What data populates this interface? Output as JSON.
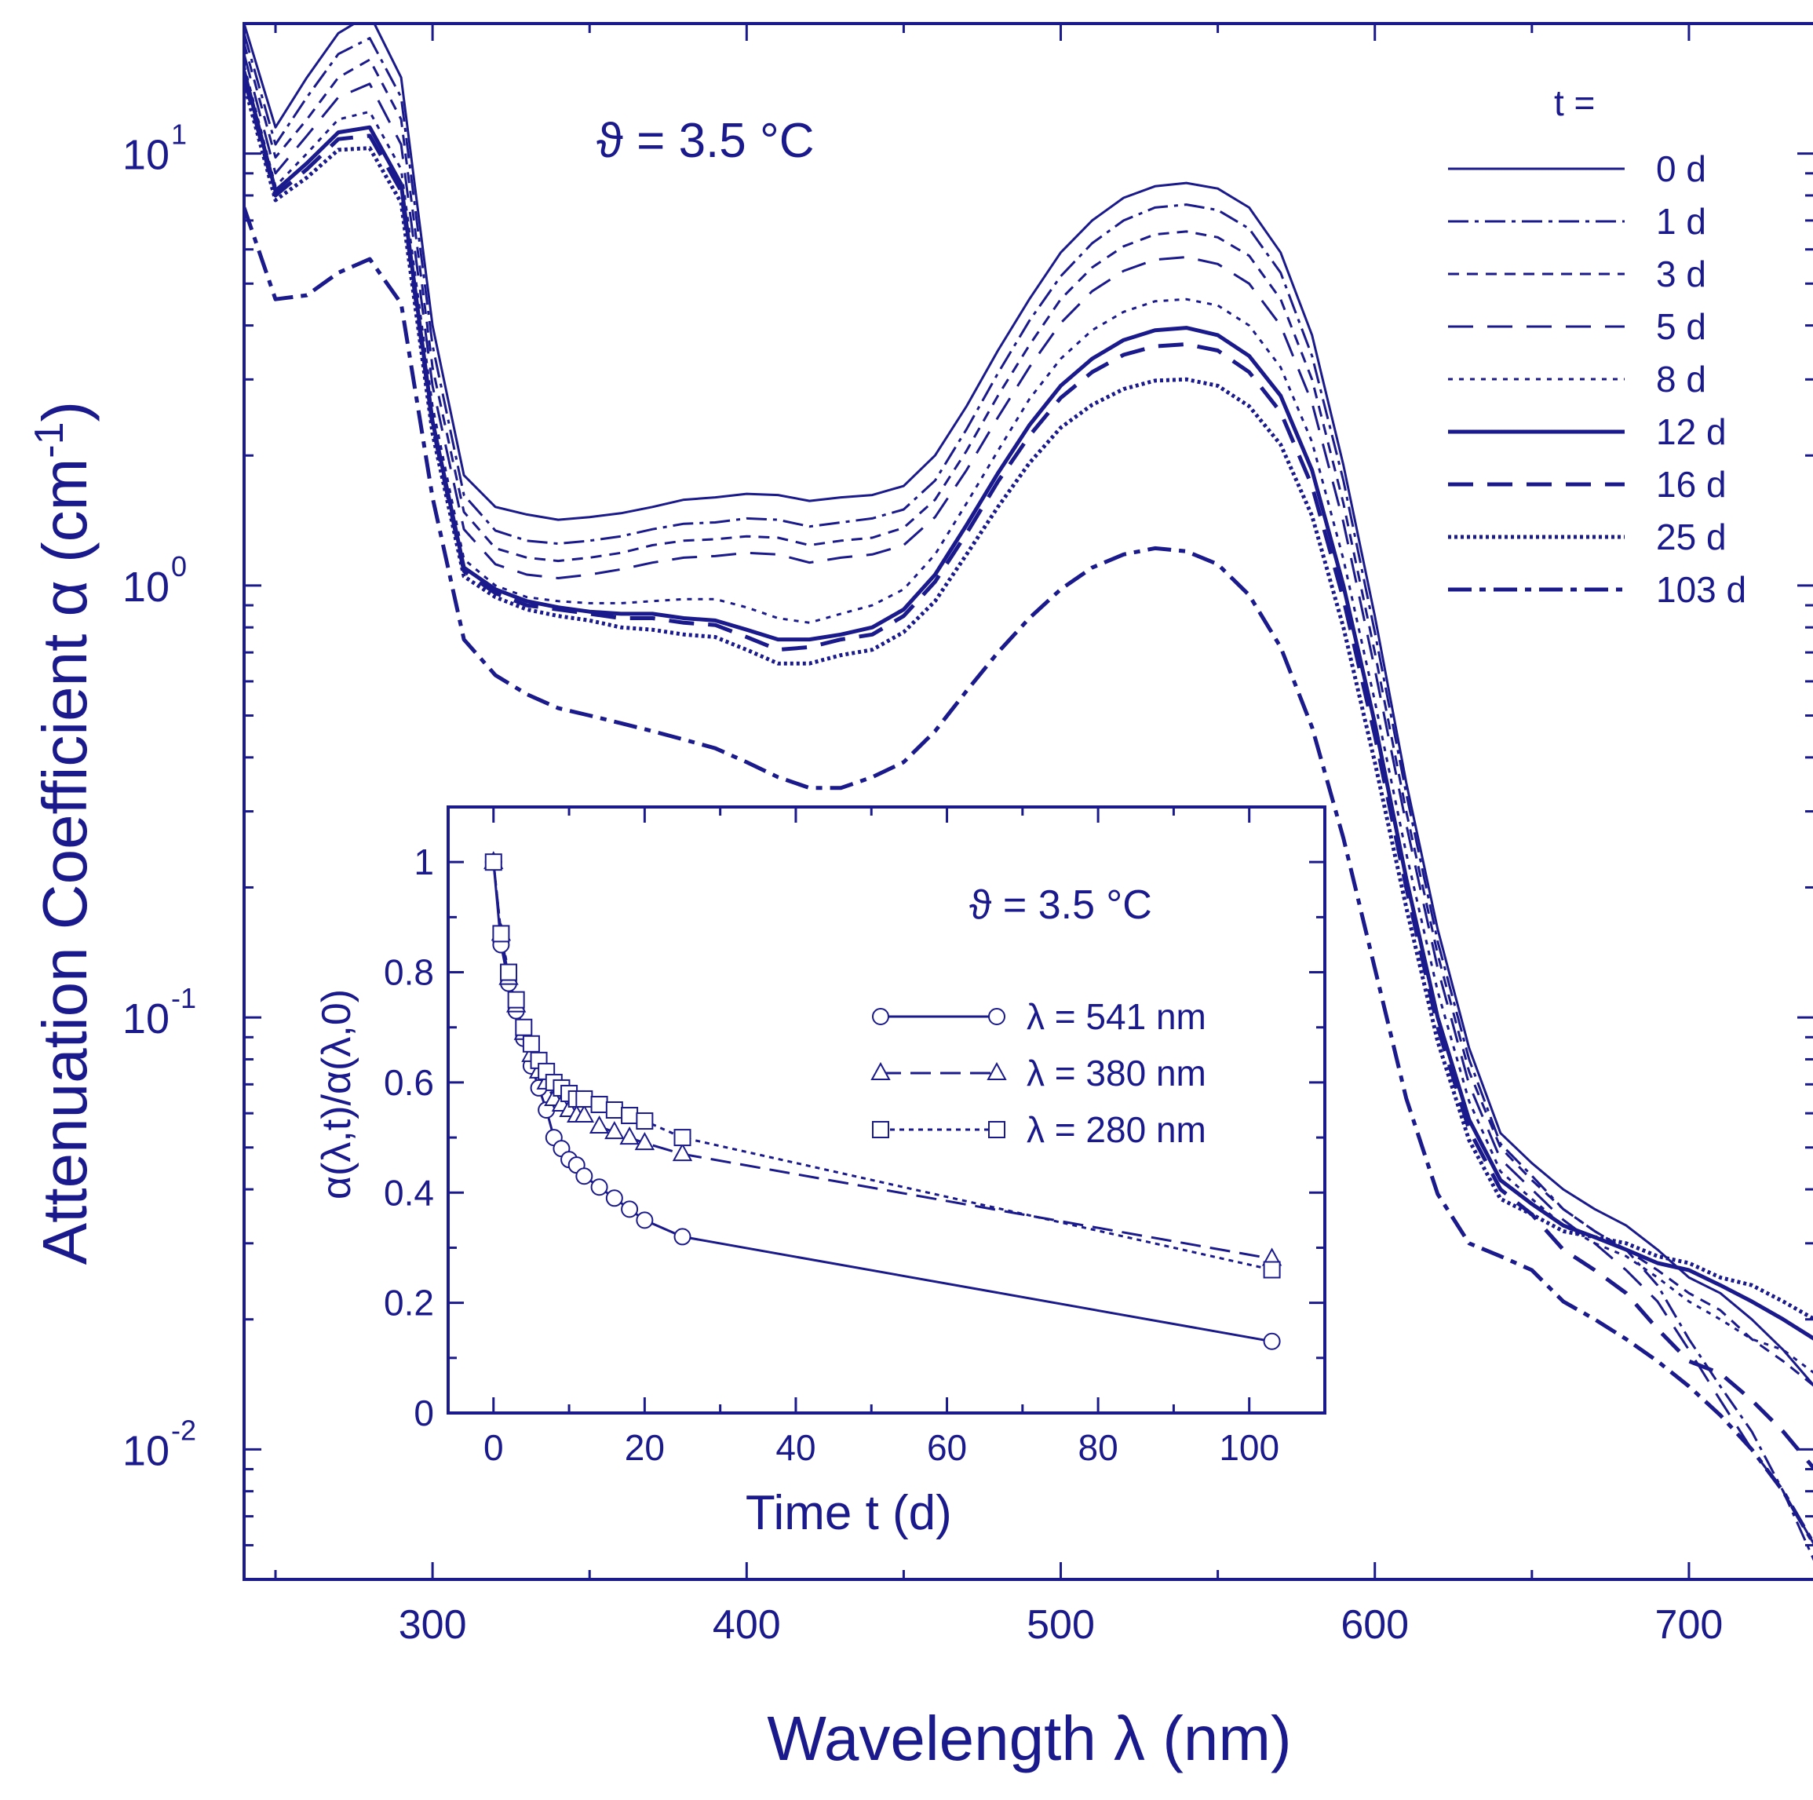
{
  "colors": {
    "ink": "#1a1a8c",
    "background": "#ffffff"
  },
  "chart_data": [
    {
      "type": "line",
      "title": "",
      "annotation": "ϑ = 3.5 °C",
      "xlabel": "Wavelength  λ  (nm)",
      "ylabel_prefix": "Attenuation Coefficient  α  (cm",
      "ylabel_exp": "-1",
      "ylabel_suffix": ")",
      "xscale": "linear",
      "yscale": "log",
      "xlim": [
        240,
        740
      ],
      "ylim": [
        0.005,
        20
      ],
      "xticks": [
        300,
        400,
        500,
        600,
        700
      ],
      "xtick_labels": [
        "300",
        "400",
        "500",
        "600",
        "700"
      ],
      "yticks": [
        {
          "value": 10,
          "base": "10",
          "exp": "1"
        },
        {
          "value": 1,
          "base": "10",
          "exp": "0"
        },
        {
          "value": 0.1,
          "base": "10",
          "exp": "-1"
        },
        {
          "value": 0.01,
          "base": "10",
          "exp": "-2"
        }
      ],
      "legend_title": "t =",
      "legend_position": "top-right",
      "wavelength": [
        240,
        250,
        260,
        270,
        280,
        290,
        300,
        310,
        320,
        330,
        340,
        350,
        360,
        370,
        380,
        390,
        400,
        410,
        420,
        430,
        440,
        450,
        460,
        470,
        480,
        490,
        500,
        510,
        520,
        530,
        540,
        550,
        560,
        570,
        580,
        590,
        600,
        610,
        620,
        630,
        640,
        650,
        660,
        670,
        680,
        690,
        700,
        710,
        720,
        730,
        740
      ],
      "series": [
        {
          "name": "0 d",
          "style": "solid",
          "width": 3,
          "values": [
            20.0,
            11.5,
            15.0,
            19.0,
            21.0,
            15.0,
            4.0,
            1.8,
            1.52,
            1.46,
            1.42,
            1.44,
            1.47,
            1.52,
            1.58,
            1.6,
            1.63,
            1.62,
            1.57,
            1.6,
            1.62,
            1.7,
            2.0,
            2.6,
            3.5,
            4.6,
            5.9,
            7.0,
            7.9,
            8.4,
            8.55,
            8.3,
            7.5,
            5.9,
            3.8,
            1.9,
            0.85,
            0.35,
            0.16,
            0.085,
            0.054,
            0.046,
            0.04,
            0.036,
            0.033,
            0.029,
            0.025,
            0.023,
            0.02,
            0.017,
            0.014
          ]
        },
        {
          "name": "1 d",
          "style": "dashdot",
          "width": 3,
          "values": [
            19.0,
            10.5,
            13.5,
            17.0,
            18.5,
            13.5,
            3.6,
            1.62,
            1.34,
            1.27,
            1.25,
            1.27,
            1.3,
            1.35,
            1.39,
            1.4,
            1.43,
            1.42,
            1.37,
            1.4,
            1.43,
            1.5,
            1.75,
            2.3,
            3.1,
            4.1,
            5.2,
            6.2,
            7.0,
            7.5,
            7.62,
            7.4,
            6.7,
            5.3,
            3.4,
            1.75,
            0.78,
            0.33,
            0.15,
            0.08,
            0.051,
            0.043,
            0.036,
            0.032,
            0.029,
            0.024,
            0.018,
            0.014,
            0.011,
            0.008,
            0.0055
          ]
        },
        {
          "name": "3 d",
          "style": "dash_short",
          "width": 3,
          "values": [
            18.0,
            9.8,
            12.0,
            15.0,
            16.5,
            12.0,
            3.2,
            1.48,
            1.22,
            1.16,
            1.14,
            1.16,
            1.19,
            1.24,
            1.27,
            1.28,
            1.3,
            1.29,
            1.24,
            1.27,
            1.29,
            1.36,
            1.58,
            2.05,
            2.75,
            3.6,
            4.6,
            5.45,
            6.1,
            6.5,
            6.6,
            6.4,
            5.8,
            4.6,
            3.0,
            1.55,
            0.7,
            0.3,
            0.14,
            0.075,
            0.05,
            0.042,
            0.036,
            0.032,
            0.029,
            0.026,
            0.023,
            0.021,
            0.018,
            0.016,
            0.014
          ]
        },
        {
          "name": "5 d",
          "style": "dash_long",
          "width": 3,
          "values": [
            17.0,
            9.0,
            11.0,
            13.5,
            14.5,
            10.5,
            2.9,
            1.35,
            1.12,
            1.06,
            1.04,
            1.06,
            1.09,
            1.13,
            1.16,
            1.17,
            1.19,
            1.18,
            1.13,
            1.16,
            1.18,
            1.24,
            1.44,
            1.85,
            2.45,
            3.2,
            4.05,
            4.8,
            5.35,
            5.68,
            5.76,
            5.55,
            5.0,
            4.0,
            2.65,
            1.4,
            0.64,
            0.28,
            0.13,
            0.07,
            0.047,
            0.04,
            0.034,
            0.03,
            0.026,
            0.022,
            0.017,
            0.013,
            0.01,
            0.008,
            0.006
          ]
        },
        {
          "name": "8 d",
          "style": "dotted",
          "width": 3,
          "values": [
            16.0,
            8.4,
            10.0,
            12.0,
            12.5,
            9.2,
            2.6,
            1.15,
            1.0,
            0.94,
            0.92,
            0.91,
            0.91,
            0.92,
            0.93,
            0.93,
            0.89,
            0.84,
            0.82,
            0.86,
            0.9,
            0.98,
            1.18,
            1.55,
            2.05,
            2.7,
            3.35,
            3.9,
            4.3,
            4.55,
            4.6,
            4.45,
            4.0,
            3.2,
            2.15,
            1.15,
            0.54,
            0.24,
            0.115,
            0.064,
            0.044,
            0.038,
            0.033,
            0.03,
            0.028,
            0.025,
            0.022,
            0.02,
            0.018,
            0.017,
            0.015
          ]
        },
        {
          "name": "12 d",
          "style": "solid",
          "width": 5,
          "values": [
            15.5,
            8.2,
            9.5,
            11.2,
            11.5,
            8.5,
            2.4,
            1.1,
            0.98,
            0.92,
            0.89,
            0.87,
            0.86,
            0.86,
            0.84,
            0.83,
            0.79,
            0.75,
            0.75,
            0.77,
            0.8,
            0.88,
            1.06,
            1.38,
            1.82,
            2.35,
            2.9,
            3.35,
            3.7,
            3.9,
            3.95,
            3.8,
            3.4,
            2.75,
            1.85,
            1.0,
            0.48,
            0.21,
            0.1,
            0.058,
            0.042,
            0.037,
            0.033,
            0.031,
            0.029,
            0.027,
            0.026,
            0.024,
            0.022,
            0.02,
            0.018
          ]
        },
        {
          "name": "16 d",
          "style": "dash_long",
          "width": 5,
          "values": [
            15.0,
            8.0,
            9.2,
            10.8,
            11.0,
            8.2,
            2.35,
            1.08,
            0.96,
            0.9,
            0.88,
            0.86,
            0.84,
            0.84,
            0.82,
            0.81,
            0.76,
            0.71,
            0.72,
            0.75,
            0.77,
            0.85,
            1.02,
            1.32,
            1.74,
            2.22,
            2.72,
            3.12,
            3.42,
            3.58,
            3.62,
            3.5,
            3.12,
            2.52,
            1.7,
            0.93,
            0.45,
            0.2,
            0.095,
            0.055,
            0.04,
            0.035,
            0.029,
            0.026,
            0.023,
            0.019,
            0.016,
            0.015,
            0.013,
            0.011,
            0.009
          ]
        },
        {
          "name": "25 d",
          "style": "dotted_dense",
          "width": 5,
          "values": [
            14.5,
            7.8,
            8.8,
            10.2,
            10.3,
            7.7,
            2.25,
            1.05,
            0.94,
            0.88,
            0.85,
            0.83,
            0.8,
            0.79,
            0.77,
            0.76,
            0.71,
            0.66,
            0.66,
            0.69,
            0.71,
            0.78,
            0.92,
            1.18,
            1.52,
            1.92,
            2.32,
            2.62,
            2.85,
            2.98,
            3.0,
            2.9,
            2.6,
            2.12,
            1.45,
            0.8,
            0.39,
            0.18,
            0.088,
            0.052,
            0.038,
            0.035,
            0.032,
            0.031,
            0.03,
            0.028,
            0.027,
            0.025,
            0.024,
            0.022,
            0.02
          ]
        },
        {
          "name": "103 d",
          "style": "dashdot_long",
          "width": 5,
          "values": [
            7.5,
            4.6,
            4.7,
            5.3,
            5.7,
            4.5,
            1.6,
            0.75,
            0.62,
            0.56,
            0.52,
            0.5,
            0.48,
            0.46,
            0.44,
            0.42,
            0.39,
            0.36,
            0.34,
            0.34,
            0.36,
            0.39,
            0.46,
            0.57,
            0.7,
            0.84,
            0.98,
            1.1,
            1.18,
            1.22,
            1.2,
            1.12,
            0.95,
            0.72,
            0.47,
            0.26,
            0.13,
            0.065,
            0.039,
            0.03,
            0.028,
            0.026,
            0.022,
            0.02,
            0.018,
            0.016,
            0.014,
            0.012,
            0.01,
            0.008,
            0.006
          ]
        }
      ]
    },
    {
      "type": "line",
      "title": "",
      "annotation": "ϑ = 3.5 °C",
      "xlabel": "Time  t  (d)",
      "ylabel": "α(λ,t)/α(λ,0)",
      "xlim": [
        -6,
        110
      ],
      "ylim": [
        0,
        1.1
      ],
      "xticks": [
        0,
        20,
        40,
        60,
        80,
        100
      ],
      "xtick_labels": [
        "0",
        "20",
        "40",
        "60",
        "80",
        "100"
      ],
      "yticks": [
        0,
        0.2,
        0.4,
        0.6,
        0.8,
        1
      ],
      "ytick_labels": [
        "0",
        "0.2",
        "0.4",
        "0.6",
        "0.8",
        "1"
      ],
      "legend_position": "right",
      "series": [
        {
          "name": "λ = 541 nm",
          "marker": "circle",
          "style": "solid",
          "x": [
            0,
            1,
            2,
            3,
            4,
            5,
            6,
            7,
            8,
            9,
            10,
            11,
            12,
            14,
            16,
            18,
            20,
            25,
            103
          ],
          "y": [
            1.0,
            0.85,
            0.78,
            0.73,
            0.68,
            0.63,
            0.59,
            0.55,
            0.5,
            0.48,
            0.46,
            0.45,
            0.43,
            0.41,
            0.39,
            0.37,
            0.35,
            0.32,
            0.13
          ]
        },
        {
          "name": "λ = 380 nm",
          "marker": "triangle",
          "style": "dashed",
          "x": [
            0,
            1,
            2,
            3,
            4,
            5,
            6,
            7,
            8,
            9,
            10,
            11,
            12,
            14,
            16,
            18,
            20,
            25,
            103
          ],
          "y": [
            1.0,
            0.87,
            0.79,
            0.74,
            0.69,
            0.65,
            0.62,
            0.6,
            0.57,
            0.56,
            0.55,
            0.54,
            0.54,
            0.52,
            0.51,
            0.5,
            0.49,
            0.47,
            0.28
          ]
        },
        {
          "name": "λ = 280 nm",
          "marker": "square",
          "style": "dotted",
          "x": [
            0,
            1,
            2,
            3,
            4,
            5,
            6,
            7,
            8,
            9,
            10,
            11,
            12,
            14,
            16,
            18,
            20,
            25,
            103
          ],
          "y": [
            1.0,
            0.87,
            0.8,
            0.75,
            0.7,
            0.67,
            0.64,
            0.62,
            0.6,
            0.59,
            0.58,
            0.57,
            0.57,
            0.56,
            0.55,
            0.54,
            0.53,
            0.5,
            0.26
          ]
        }
      ]
    }
  ]
}
